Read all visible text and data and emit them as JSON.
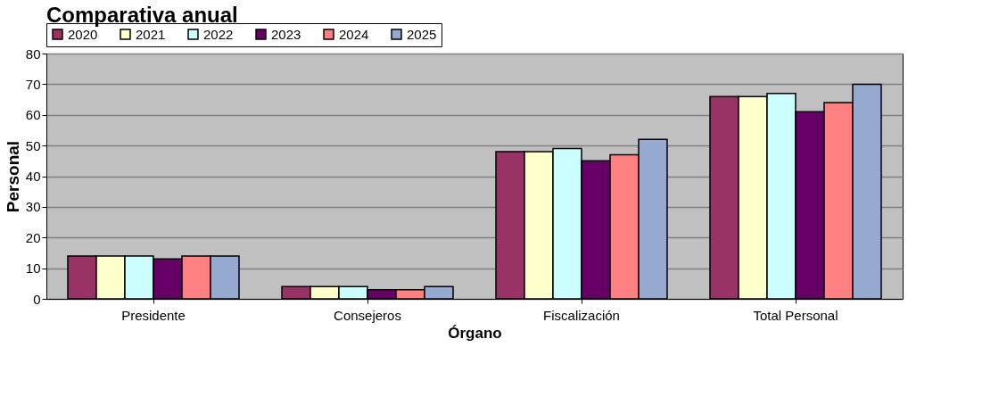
{
  "chart_data": {
    "type": "bar",
    "title": "Comparativa anual",
    "xlabel": "Órgano",
    "ylabel": "Personal",
    "categories": [
      "Presidente",
      "Consejeros",
      "Fiscalización",
      "Total Personal"
    ],
    "series": [
      {
        "name": "2020",
        "color": "#993366",
        "values": [
          14,
          4,
          48,
          66
        ]
      },
      {
        "name": "2021",
        "color": "#ffffcc",
        "values": [
          14,
          4,
          48,
          66
        ]
      },
      {
        "name": "2022",
        "color": "#ccffff",
        "values": [
          14,
          4,
          49,
          67
        ]
      },
      {
        "name": "2023",
        "color": "#660066",
        "values": [
          13,
          3,
          45,
          61
        ]
      },
      {
        "name": "2024",
        "color": "#ff8080",
        "values": [
          14,
          3,
          47,
          64
        ]
      },
      {
        "name": "2025",
        "color": "#95a9d1",
        "values": [
          14,
          4,
          52,
          70
        ]
      }
    ],
    "ylim": [
      0,
      80
    ],
    "yticks": [
      0,
      10,
      20,
      30,
      40,
      50,
      60,
      70,
      80
    ],
    "grid": "y",
    "legend": "top"
  }
}
